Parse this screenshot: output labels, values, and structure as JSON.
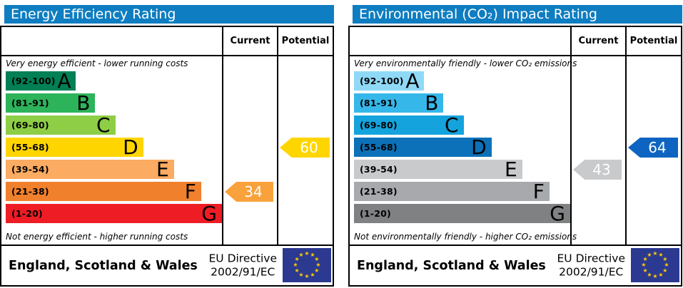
{
  "chart_data": [
    {
      "type": "bar",
      "subtype": "epc-rating-scale",
      "title": "Energy Efficiency Rating",
      "header_color": "#0e7dc1",
      "columns": [
        "Current",
        "Potential"
      ],
      "top_note": "Very energy efficient - lower running costs",
      "bottom_note": "Not energy efficient - higher running costs",
      "bands": [
        {
          "grade": "A",
          "range": "(92-100)",
          "min": 92,
          "max": 100,
          "color": "#008054",
          "width": "32.5%"
        },
        {
          "grade": "B",
          "range": "(81-91)",
          "min": 81,
          "max": 91,
          "color": "#2db35a",
          "width": "41.4%"
        },
        {
          "grade": "C",
          "range": "(69-80)",
          "min": 69,
          "max": 80,
          "color": "#8ece46",
          "width": "50.7%"
        },
        {
          "grade": "D",
          "range": "(55-68)",
          "min": 55,
          "max": 68,
          "color": "#ffd500",
          "width": "63.6%"
        },
        {
          "grade": "E",
          "range": "(39-54)",
          "min": 39,
          "max": 54,
          "color": "#fbab62",
          "width": "77.8%"
        },
        {
          "grade": "F",
          "range": "(21-38)",
          "min": 21,
          "max": 38,
          "color": "#f1802d",
          "width": "90.4%"
        },
        {
          "grade": "G",
          "range": "(1-20)",
          "min": 1,
          "max": 20,
          "color": "#ee1c25",
          "width": "100%"
        }
      ],
      "current": {
        "value": 34,
        "band": "F",
        "color": "#f9a23b"
      },
      "potential": {
        "value": 60,
        "band": "D",
        "color": "#ffd500"
      },
      "footer": {
        "region": "England, Scotland & Wales",
        "directive_line1": "EU Directive",
        "directive_line2": "2002/91/EC",
        "flag": {
          "name": "eu-flag",
          "bg": "#2b3990",
          "star_color": "#ffcc00",
          "stars": 12
        }
      }
    },
    {
      "type": "bar",
      "subtype": "epc-rating-scale",
      "title": "Environmental (CO₂) Impact Rating",
      "header_color": "#0e7dc1",
      "columns": [
        "Current",
        "Potential"
      ],
      "top_note": "Very environmentally friendly - lower CO₂ emissions",
      "bottom_note": "Not environmentally friendly - higher CO₂ emissions",
      "bands": [
        {
          "grade": "A",
          "range": "(92-100)",
          "min": 92,
          "max": 100,
          "color": "#8fd9f7",
          "width": "32.5%"
        },
        {
          "grade": "B",
          "range": "(81-91)",
          "min": 81,
          "max": 91,
          "color": "#36b7ea",
          "width": "41.4%"
        },
        {
          "grade": "C",
          "range": "(69-80)",
          "min": 69,
          "max": 80,
          "color": "#14a3dd",
          "width": "50.7%"
        },
        {
          "grade": "D",
          "range": "(55-68)",
          "min": 55,
          "max": 68,
          "color": "#0c71b8",
          "width": "63.6%"
        },
        {
          "grade": "E",
          "range": "(39-54)",
          "min": 39,
          "max": 54,
          "color": "#c9cacc",
          "width": "77.8%"
        },
        {
          "grade": "F",
          "range": "(21-38)",
          "min": 21,
          "max": 38,
          "color": "#a7a9ac",
          "width": "90.4%"
        },
        {
          "grade": "G",
          "range": "(1-20)",
          "min": 1,
          "max": 20,
          "color": "#7f8183",
          "width": "100%"
        }
      ],
      "current": {
        "value": 43,
        "band": "E",
        "color": "#c9cacc"
      },
      "potential": {
        "value": 64,
        "band": "D",
        "color": "#0d64c1"
      },
      "footer": {
        "region": "England, Scotland & Wales",
        "directive_line1": "EU Directive",
        "directive_line2": "2002/91/EC",
        "flag": {
          "name": "eu-flag",
          "bg": "#2b3990",
          "star_color": "#ffcc00",
          "stars": 12
        }
      }
    }
  ]
}
